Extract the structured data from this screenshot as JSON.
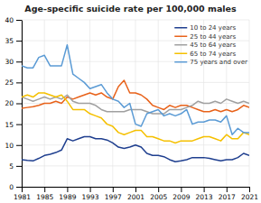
{
  "chart_data": {
    "type": "line",
    "title": "Age-specific suicide rate per 100,000 males",
    "x": [
      1981,
      1982,
      1983,
      1984,
      1985,
      1986,
      1987,
      1988,
      1989,
      1990,
      1991,
      1992,
      1993,
      1994,
      1995,
      1996,
      1997,
      1998,
      1999,
      2000,
      2001,
      2002,
      2003,
      2004,
      2005,
      2006,
      2007,
      2008,
      2009,
      2010,
      2011,
      2012,
      2013,
      2014,
      2015,
      2016,
      2017,
      2018,
      2019,
      2020,
      2021
    ],
    "series": [
      {
        "name": "10 to 24 years",
        "color": "#1F3F8F",
        "values": [
          6.5,
          6.3,
          6.2,
          6.8,
          7.5,
          7.8,
          8.2,
          8.8,
          11.5,
          11.0,
          11.5,
          12.0,
          12.0,
          11.5,
          11.5,
          11.2,
          10.5,
          9.5,
          9.2,
          9.5,
          10.0,
          9.5,
          8.0,
          7.5,
          7.5,
          7.2,
          6.5,
          6.0,
          6.2,
          6.5,
          7.0,
          7.0,
          7.0,
          6.8,
          6.5,
          6.2,
          6.5,
          6.5,
          7.0,
          8.0,
          7.5
        ]
      },
      {
        "name": "25 to 44 years",
        "color": "#E8621A",
        "values": [
          18.8,
          19.0,
          19.2,
          19.5,
          20.0,
          20.0,
          20.5,
          20.0,
          21.5,
          21.0,
          21.5,
          22.0,
          22.5,
          22.0,
          22.5,
          21.5,
          21.0,
          24.0,
          25.5,
          22.5,
          22.5,
          22.0,
          21.0,
          19.5,
          19.0,
          18.5,
          19.5,
          19.0,
          19.5,
          19.5,
          19.0,
          18.5,
          18.0,
          18.0,
          18.5,
          18.0,
          18.5,
          18.0,
          18.5,
          19.5,
          19.0
        ]
      },
      {
        "name": "45 to 64 years",
        "color": "#A0A0A0",
        "values": [
          21.5,
          21.0,
          20.5,
          21.0,
          21.5,
          21.0,
          21.5,
          21.0,
          22.0,
          20.5,
          20.0,
          20.0,
          20.0,
          19.5,
          18.5,
          18.0,
          18.0,
          18.0,
          18.0,
          18.5,
          18.5,
          18.5,
          18.0,
          17.5,
          17.5,
          17.5,
          18.5,
          18.5,
          18.5,
          19.0,
          19.5,
          20.5,
          20.0,
          20.0,
          20.5,
          20.0,
          21.0,
          20.5,
          20.0,
          20.5,
          20.0
        ]
      },
      {
        "name": "65 to 74 years",
        "color": "#F5C000",
        "values": [
          21.5,
          22.0,
          21.5,
          22.5,
          22.5,
          22.0,
          21.5,
          22.0,
          20.5,
          18.5,
          18.5,
          18.5,
          17.5,
          17.0,
          16.5,
          15.0,
          14.5,
          13.0,
          12.5,
          13.0,
          13.5,
          13.5,
          12.0,
          12.0,
          11.5,
          11.0,
          11.0,
          10.5,
          11.0,
          11.0,
          11.0,
          11.5,
          12.0,
          12.0,
          11.5,
          11.0,
          12.5,
          11.5,
          11.5,
          13.0,
          12.5
        ]
      },
      {
        "name": "75 years and over",
        "color": "#5B9BD5",
        "values": [
          29.0,
          28.5,
          28.5,
          31.0,
          31.5,
          29.0,
          29.0,
          29.0,
          34.0,
          27.0,
          26.0,
          25.0,
          23.5,
          24.0,
          24.5,
          22.5,
          21.0,
          20.5,
          19.0,
          20.0,
          15.0,
          14.5,
          17.5,
          18.0,
          18.5,
          17.0,
          17.5,
          17.0,
          17.5,
          18.5,
          15.0,
          15.5,
          15.5,
          16.0,
          16.0,
          15.5,
          17.0,
          12.5,
          14.0,
          13.0,
          13.0
        ]
      }
    ],
    "xlim": [
      1981,
      2021
    ],
    "ylim": [
      0,
      40
    ],
    "xticks": [
      1981,
      1985,
      1989,
      1993,
      1997,
      2001,
      2005,
      2009,
      2013,
      2017,
      2021
    ],
    "yticks": [
      0,
      5,
      10,
      15,
      20,
      25,
      30,
      35,
      40
    ],
    "grid": true,
    "legend": "upper right"
  }
}
